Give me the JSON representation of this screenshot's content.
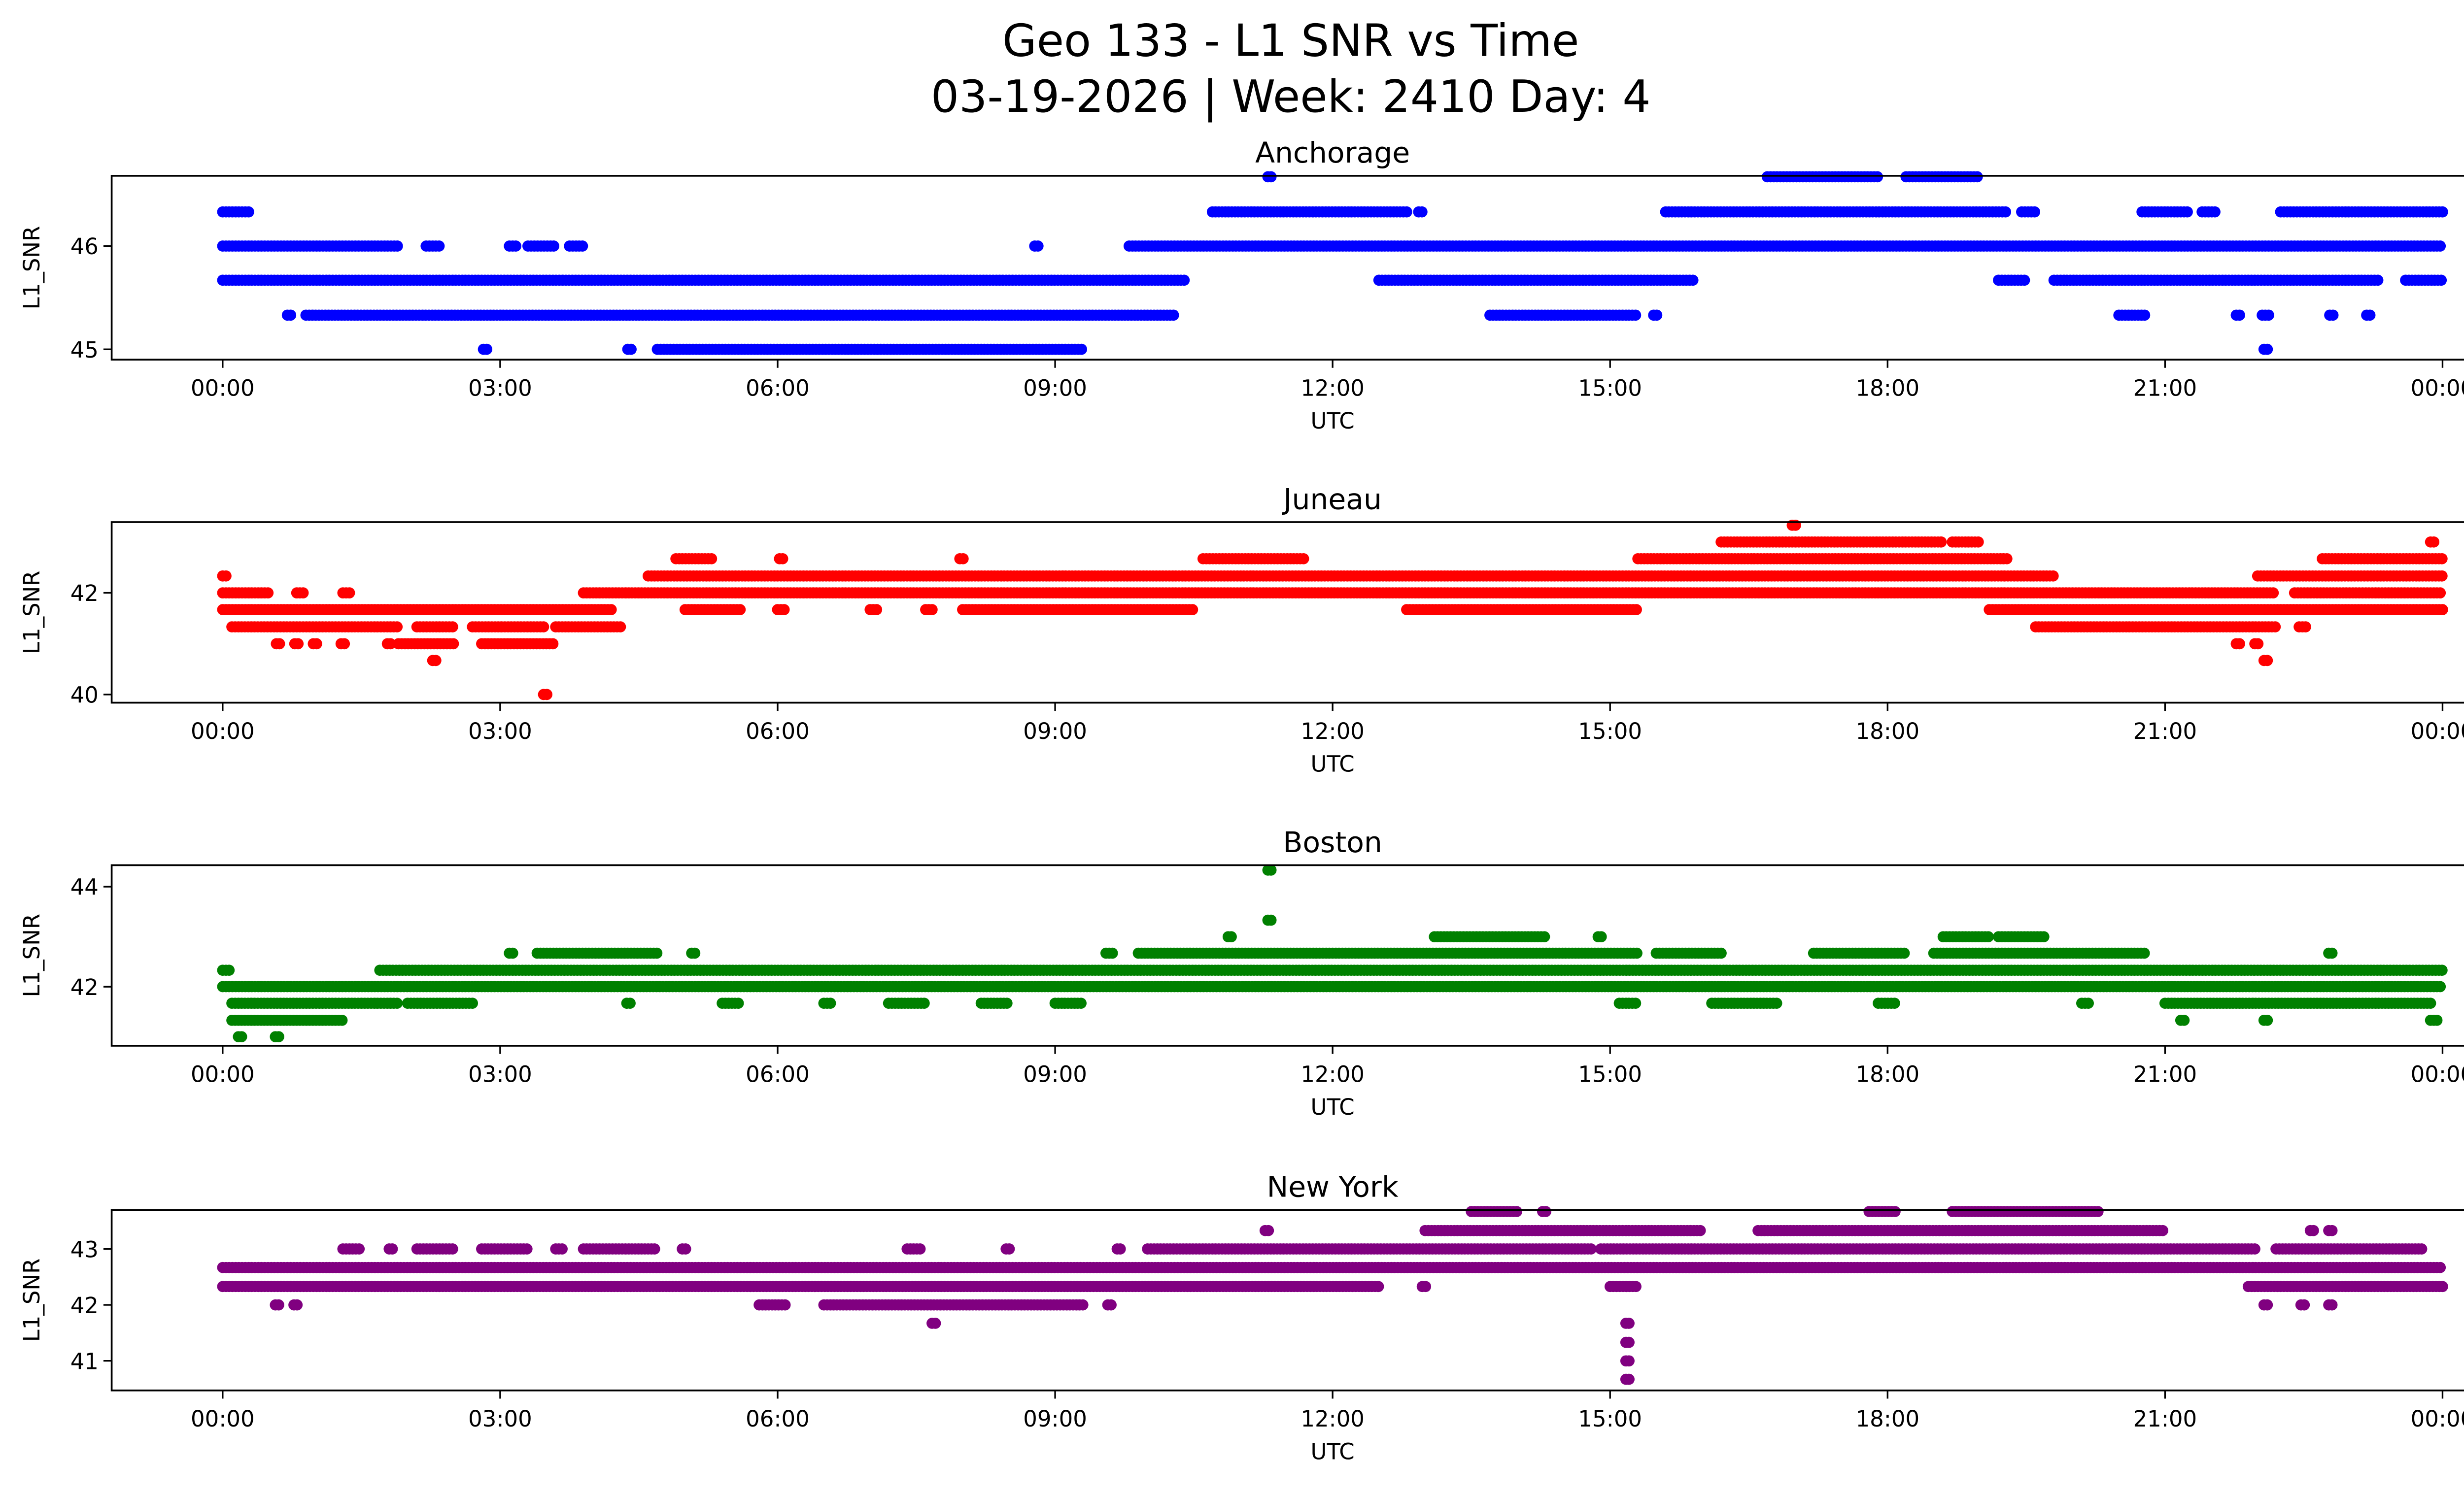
{
  "chart_data": [
    {
      "type": "scatter",
      "title": "Anchorage",
      "color": "#0000ff",
      "xlabel": "UTC",
      "ylabel": "L1_SNR",
      "xlim_hours": [
        -1.2,
        25.2
      ],
      "ylim": [
        44.9,
        46.68
      ],
      "yticks": [
        45,
        46
      ],
      "yticklabels": [
        "45",
        "46"
      ],
      "bands": [
        {
          "y": 46.67,
          "x": [
            [
              11.3,
              11.36
            ],
            [
              16.7,
              17.9
            ],
            [
              18.2,
              19.0
            ]
          ]
        },
        {
          "y": 46.33,
          "x": [
            [
              0,
              0.3
            ],
            [
              10.7,
              12.8
            ],
            [
              12.93,
              12.98
            ],
            [
              15.6,
              19.3
            ],
            [
              19.45,
              19.62
            ],
            [
              20.75,
              21.25
            ],
            [
              21.4,
              21.55
            ],
            [
              22.25,
              24
            ]
          ]
        },
        {
          "y": 46,
          "x": [
            [
              0,
              1.9
            ],
            [
              2.2,
              2.35
            ],
            [
              3.1,
              3.2
            ],
            [
              3.3,
              3.6
            ],
            [
              3.75,
              3.9
            ],
            [
              8.78,
              8.84
            ],
            [
              9.8,
              24
            ]
          ]
        },
        {
          "y": 45.67,
          "x": [
            [
              0,
              10.4
            ],
            [
              12.5,
              15.9
            ],
            [
              19.2,
              19.5
            ],
            [
              19.8,
              23.3
            ],
            [
              23.6,
              24
            ]
          ]
        },
        {
          "y": 45.33,
          "x": [
            [
              0.7,
              0.76
            ],
            [
              0.9,
              10.3
            ],
            [
              13.7,
              15.3
            ],
            [
              15.47,
              15.53
            ],
            [
              20.5,
              20.8
            ],
            [
              21.77,
              21.83
            ],
            [
              22.05,
              22.15
            ],
            [
              22.78,
              22.84
            ],
            [
              23.18,
              23.24
            ]
          ]
        },
        {
          "y": 45,
          "x": [
            [
              2.82,
              2.88
            ],
            [
              4.38,
              4.44
            ],
            [
              4.7,
              9.3
            ],
            [
              22.07,
              22.13
            ]
          ]
        }
      ]
    },
    {
      "type": "scatter",
      "title": "Juneau",
      "color": "#ff0000",
      "xlabel": "UTC",
      "ylabel": "L1_SNR",
      "xlim_hours": [
        -1.2,
        25.2
      ],
      "ylim": [
        39.84,
        43.39
      ],
      "yticks": [
        40,
        42
      ],
      "yticklabels": [
        "40",
        "42"
      ],
      "bands": [
        {
          "y": 43.33,
          "x": [
            [
              16.97,
              17.03
            ]
          ]
        },
        {
          "y": 43,
          "x": [
            [
              16.2,
              18.6
            ],
            [
              18.7,
              19.0
            ],
            [
              23.87,
              23.93
            ]
          ]
        },
        {
          "y": 42.67,
          "x": [
            [
              4.9,
              5.3
            ],
            [
              6.02,
              6.08
            ],
            [
              7.97,
              8.03
            ],
            [
              10.6,
              11.7
            ],
            [
              15.3,
              19.3
            ],
            [
              22.7,
              24
            ]
          ]
        },
        {
          "y": 42.33,
          "x": [
            [
              0,
              0.05
            ],
            [
              4.6,
              19.8
            ],
            [
              22.0,
              24
            ]
          ]
        },
        {
          "y": 42,
          "x": [
            [
              0,
              0.5
            ],
            [
              0.8,
              0.9
            ],
            [
              1.3,
              1.4
            ],
            [
              3.9,
              22.2
            ],
            [
              22.4,
              24
            ]
          ]
        },
        {
          "y": 41.67,
          "x": [
            [
              0,
              4.2
            ],
            [
              5.0,
              5.6
            ],
            [
              6.0,
              6.1
            ],
            [
              7.0,
              7.1
            ],
            [
              7.6,
              7.7
            ],
            [
              8.0,
              10.5
            ],
            [
              12.8,
              15.3
            ],
            [
              19.1,
              24
            ]
          ]
        },
        {
          "y": 41.33,
          "x": [
            [
              0.1,
              1.9
            ],
            [
              2.1,
              2.5
            ],
            [
              2.7,
              3.5
            ],
            [
              3.6,
              4.3
            ],
            [
              19.6,
              22.2
            ],
            [
              22.45,
              22.55
            ]
          ]
        },
        {
          "y": 41,
          "x": [
            [
              0.58,
              0.64
            ],
            [
              0.78,
              0.84
            ],
            [
              0.98,
              1.04
            ],
            [
              1.28,
              1.34
            ],
            [
              1.78,
              1.84
            ],
            [
              1.9,
              2.5
            ],
            [
              2.8,
              3.6
            ],
            [
              21.77,
              21.83
            ],
            [
              21.97,
              22.03
            ]
          ]
        },
        {
          "y": 40.67,
          "x": [
            [
              2.27,
              2.33
            ],
            [
              22.07,
              22.13
            ]
          ]
        },
        {
          "y": 40,
          "x": [
            [
              3.47,
              3.53
            ]
          ]
        }
      ]
    },
    {
      "type": "scatter",
      "title": "Boston",
      "color": "#008000",
      "xlabel": "UTC",
      "ylabel": "L1_SNR",
      "xlim_hours": [
        -1.2,
        25.2
      ],
      "ylim": [
        40.82,
        44.43
      ],
      "yticks": [
        42,
        44
      ],
      "yticklabels": [
        "42",
        "44"
      ],
      "bands": [
        {
          "y": 44.33,
          "x": [
            [
              11.3,
              11.36
            ]
          ]
        },
        {
          "y": 43.33,
          "x": [
            [
              11.3,
              11.36
            ]
          ]
        },
        {
          "y": 43,
          "x": [
            [
              10.87,
              10.93
            ],
            [
              13.1,
              14.3
            ],
            [
              14.87,
              14.93
            ],
            [
              18.6,
              19.1
            ],
            [
              19.2,
              19.7
            ]
          ]
        },
        {
          "y": 42.67,
          "x": [
            [
              3.1,
              3.16
            ],
            [
              3.4,
              4.7
            ],
            [
              5.07,
              5.13
            ],
            [
              9.55,
              9.65
            ],
            [
              9.9,
              15.3
            ],
            [
              15.5,
              16.2
            ],
            [
              17.2,
              18.2
            ],
            [
              18.5,
              20.8
            ],
            [
              22.77,
              22.83
            ]
          ]
        },
        {
          "y": 42.33,
          "x": [
            [
              0,
              0.1
            ],
            [
              1.7,
              24
            ]
          ]
        },
        {
          "y": 42,
          "x": [
            [
              0,
              24
            ]
          ]
        },
        {
          "y": 41.67,
          "x": [
            [
              0.1,
              1.9
            ],
            [
              2.0,
              2.7
            ],
            [
              4.37,
              4.43
            ],
            [
              5.4,
              5.6
            ],
            [
              6.5,
              6.6
            ],
            [
              7.2,
              7.6
            ],
            [
              8.2,
              8.5
            ],
            [
              9.0,
              9.3
            ],
            [
              15.1,
              15.3
            ],
            [
              16.1,
              16.8
            ],
            [
              17.9,
              18.1
            ],
            [
              20.1,
              20.2
            ],
            [
              21.0,
              23.9
            ]
          ]
        },
        {
          "y": 41.33,
          "x": [
            [
              0.1,
              1.3
            ],
            [
              21.17,
              21.23
            ],
            [
              22.07,
              22.13
            ],
            [
              23.87,
              23.95
            ]
          ]
        },
        {
          "y": 41,
          "x": [
            [
              0.17,
              0.23
            ],
            [
              0.57,
              0.63
            ]
          ]
        }
      ]
    },
    {
      "type": "scatter",
      "title": "New York",
      "color": "#800080",
      "xlabel": "UTC",
      "ylabel": "L1_SNR",
      "xlim_hours": [
        -1.2,
        25.2
      ],
      "ylim": [
        40.47,
        43.7
      ],
      "yticks": [
        41,
        42,
        43
      ],
      "yticklabels": [
        "41",
        "42",
        "43"
      ],
      "bands": [
        {
          "y": 43.67,
          "x": [
            [
              13.5,
              14.0
            ],
            [
              14.27,
              14.33
            ],
            [
              17.8,
              18.1
            ],
            [
              18.7,
              20.3
            ]
          ]
        },
        {
          "y": 43.33,
          "x": [
            [
              11.27,
              11.33
            ],
            [
              13.0,
              16.0
            ],
            [
              16.6,
              21.0
            ],
            [
              22.57,
              22.63
            ],
            [
              22.77,
              22.83
            ]
          ]
        },
        {
          "y": 43,
          "x": [
            [
              1.3,
              1.5
            ],
            [
              1.8,
              1.85
            ],
            [
              2.1,
              2.5
            ],
            [
              2.8,
              3.3
            ],
            [
              3.6,
              3.7
            ],
            [
              3.9,
              4.7
            ],
            [
              4.97,
              5.03
            ],
            [
              7.4,
              7.55
            ],
            [
              8.47,
              8.53
            ],
            [
              9.67,
              9.73
            ],
            [
              10.0,
              14.8
            ],
            [
              14.9,
              22.0
            ],
            [
              22.2,
              23.8
            ]
          ]
        },
        {
          "y": 42.67,
          "x": [
            [
              0,
              24
            ]
          ]
        },
        {
          "y": 42.33,
          "x": [
            [
              0,
              12.5
            ],
            [
              12.97,
              13.03
            ],
            [
              15.0,
              15.3
            ],
            [
              21.9,
              24
            ]
          ]
        },
        {
          "y": 42,
          "x": [
            [
              0.57,
              0.63
            ],
            [
              0.77,
              0.83
            ],
            [
              5.8,
              6.1
            ],
            [
              6.5,
              9.3
            ],
            [
              9.57,
              9.63
            ],
            [
              22.07,
              22.13
            ],
            [
              22.47,
              22.53
            ],
            [
              22.77,
              22.83
            ]
          ]
        },
        {
          "y": 41.67,
          "x": [
            [
              7.67,
              7.73
            ],
            [
              15.17,
              15.23
            ]
          ]
        },
        {
          "y": 41.33,
          "x": [
            [
              15.17,
              15.23
            ]
          ]
        },
        {
          "y": 41,
          "x": [
            [
              15.17,
              15.23
            ]
          ]
        },
        {
          "y": 40.67,
          "x": [
            [
              15.17,
              15.23
            ]
          ]
        }
      ]
    }
  ],
  "title": {
    "line1": "Geo 133 - L1 SNR vs Time",
    "line2": "03-19-2026 | Week: 2410 Day: 4"
  },
  "xticks": [
    0,
    3,
    6,
    9,
    12,
    15,
    18,
    21,
    24
  ],
  "xticklabels": [
    "00:00",
    "03:00",
    "06:00",
    "09:00",
    "12:00",
    "15:00",
    "18:00",
    "21:00",
    "00:00"
  ]
}
